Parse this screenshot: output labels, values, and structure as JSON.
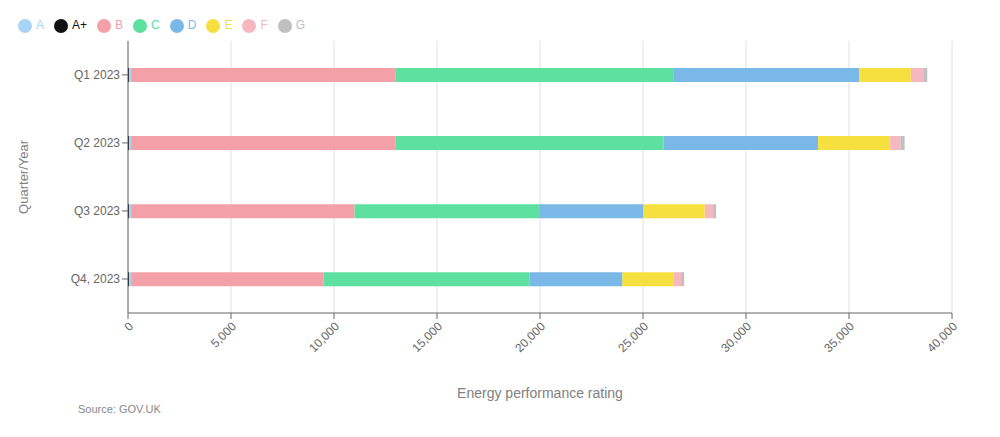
{
  "chart_data": {
    "type": "bar",
    "orientation": "horizontal",
    "stacked": true,
    "categories": [
      "Q1 2023",
      "Q2 2023",
      "Q3 2023",
      "Q4, 2023"
    ],
    "series": [
      {
        "name": "A+",
        "color": "#111111",
        "values": [
          50,
          50,
          50,
          50
        ]
      },
      {
        "name": "A",
        "color": "#aad4f5",
        "values": [
          100,
          100,
          100,
          100
        ]
      },
      {
        "name": "B",
        "color": "#f4a0a8",
        "values": [
          12850,
          12850,
          10850,
          9350
        ]
      },
      {
        "name": "C",
        "color": "#5de0a0",
        "values": [
          13500,
          13000,
          9000,
          10000
        ]
      },
      {
        "name": "D",
        "color": "#7ab8e8",
        "values": [
          9000,
          7500,
          5000,
          4500
        ]
      },
      {
        "name": "E",
        "color": "#f5e040",
        "values": [
          2500,
          3500,
          3000,
          2500
        ]
      },
      {
        "name": "F",
        "color": "#f5b8c0",
        "values": [
          600,
          500,
          400,
          350
        ]
      },
      {
        "name": "G",
        "color": "#c0c0c0",
        "values": [
          200,
          200,
          150,
          150
        ]
      }
    ],
    "xlabel": "Energy performance rating",
    "ylabel": "Quarter/Year",
    "xlim": [
      0,
      40000
    ],
    "xticks": [
      0,
      {
        "value": 5000,
        "label": "5,000"
      },
      {
        "value": 10000,
        "label": "10,000"
      },
      {
        "value": 15000,
        "label": "15,000"
      },
      {
        "value": 20000,
        "label": "20,000"
      },
      {
        "value": 25000,
        "label": "25,000"
      },
      {
        "value": 30000,
        "label": "30,000"
      },
      {
        "value": 35000,
        "label": "35,000"
      },
      {
        "value": 40000,
        "label": "40,000"
      }
    ],
    "grid": true,
    "legend": "upper left",
    "annotations": [
      "Source: GOV.UK"
    ]
  }
}
